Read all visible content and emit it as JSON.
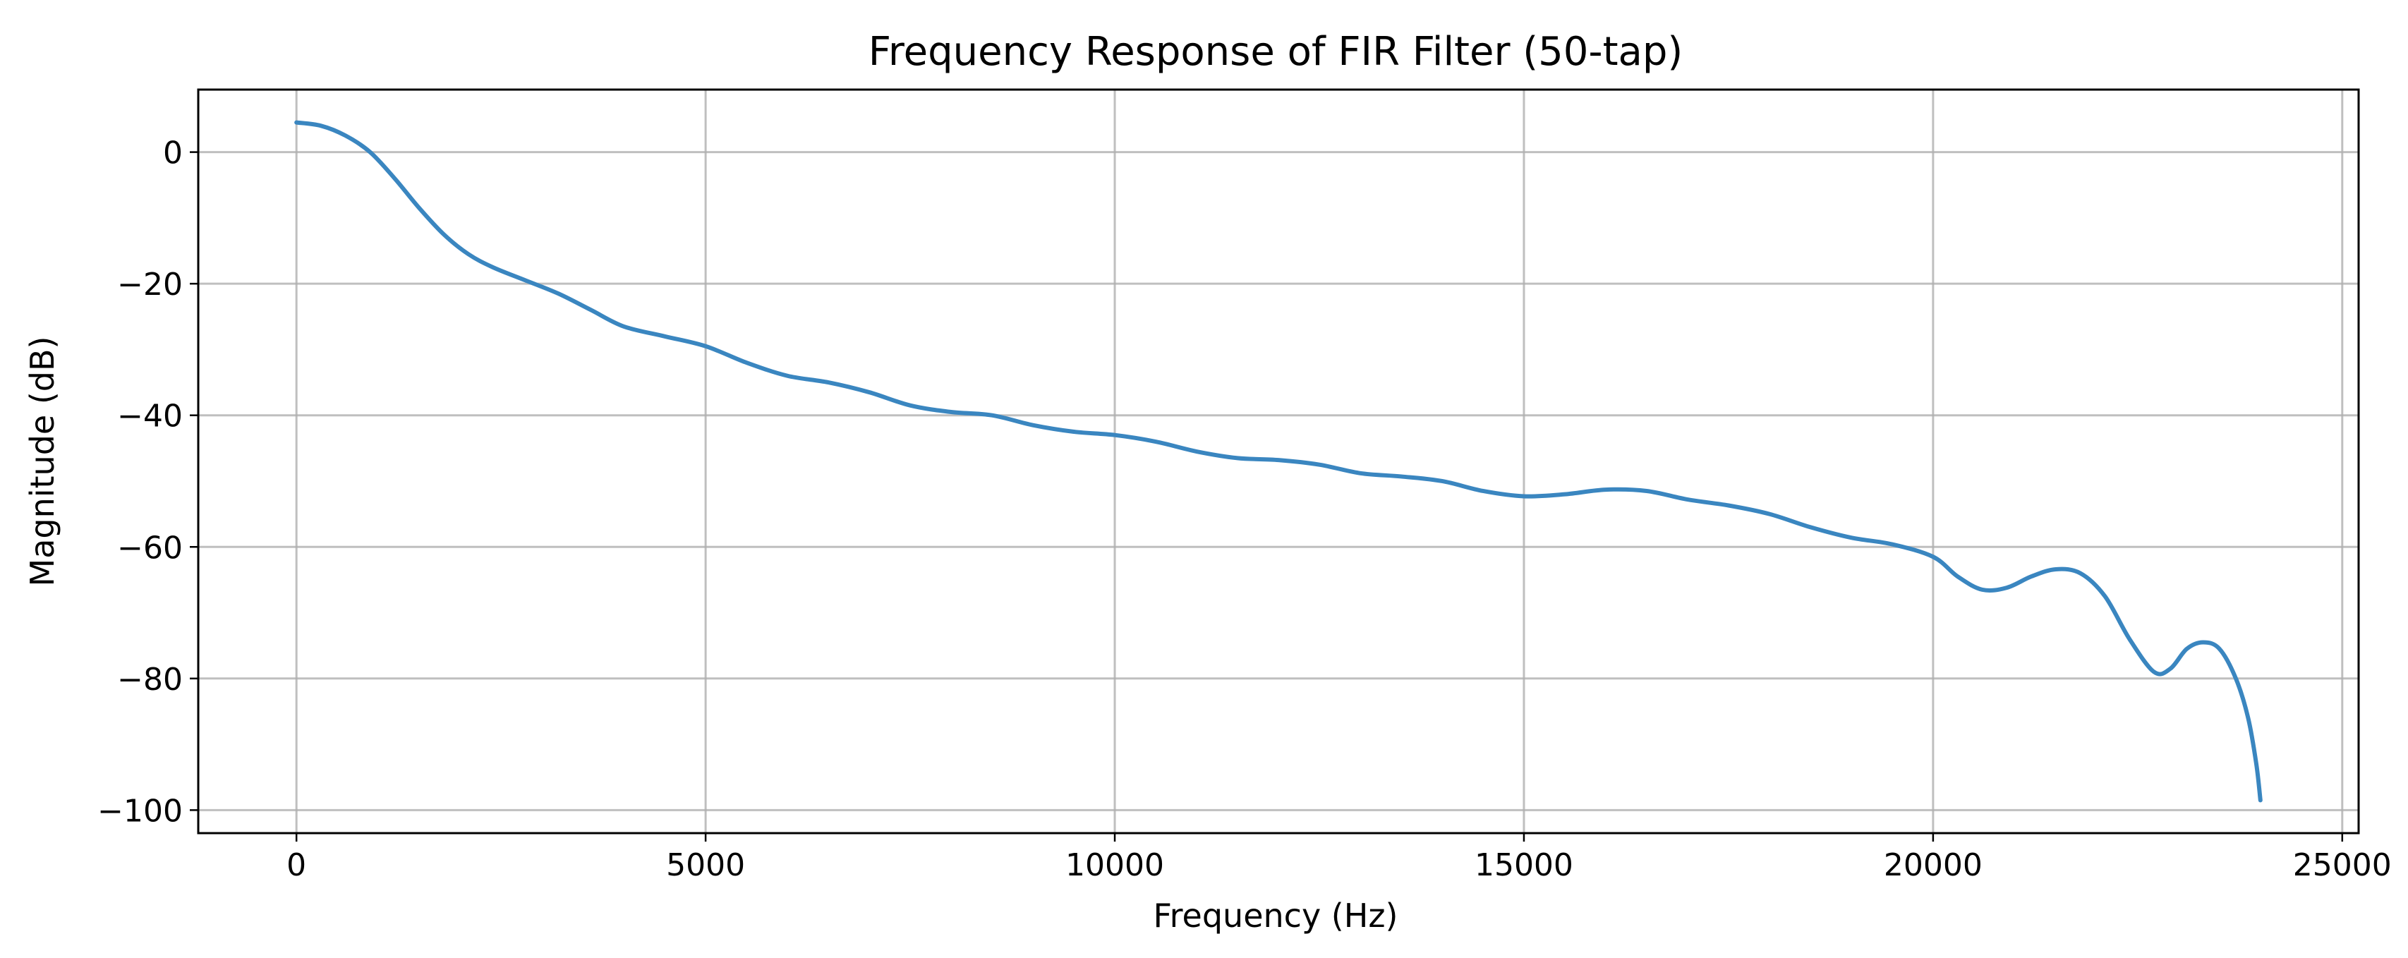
{
  "chart_data": {
    "type": "line",
    "title": "Frequency Response of FIR Filter (50-tap)",
    "xlabel": "Frequency (Hz)",
    "ylabel": "Magnitude (dB)",
    "xlim": [
      -1200,
      25200
    ],
    "ylim": [
      -103.5,
      9.5
    ],
    "grid": true,
    "x_ticks": [
      0,
      5000,
      10000,
      15000,
      20000,
      25000
    ],
    "x_tick_labels": [
      "0",
      "5000",
      "10000",
      "15000",
      "20000",
      "25000"
    ],
    "y_ticks": [
      0,
      -20,
      -40,
      -60,
      -80,
      -100
    ],
    "y_tick_labels": [
      "0",
      "−20",
      "−40",
      "−60",
      "−80",
      "−100"
    ],
    "series": [
      {
        "name": "Magnitude",
        "color": "#3a86c0",
        "x": [
          0,
          300,
          600,
          900,
          1200,
          1500,
          1800,
          2100,
          2400,
          2800,
          3200,
          3600,
          4000,
          4500,
          5000,
          5500,
          6000,
          6500,
          7000,
          7500,
          8000,
          8500,
          9000,
          9500,
          10000,
          10500,
          11000,
          11500,
          12000,
          12500,
          13000,
          13500,
          14000,
          14500,
          15000,
          15500,
          16000,
          16500,
          17000,
          17500,
          18000,
          18500,
          19000,
          19500,
          20000,
          20300,
          20600,
          20900,
          21200,
          21500,
          21800,
          22100,
          22400,
          22700,
          22900,
          23100,
          23300,
          23500,
          23700,
          23850,
          23950,
          24000
        ],
        "y": [
          4.5,
          4,
          2.5,
          0,
          -4,
          -8.5,
          -12.5,
          -15.5,
          -17.5,
          -19.5,
          -21.5,
          -24,
          -26.5,
          -28,
          -29.5,
          -32,
          -34,
          -35,
          -36.5,
          -38.5,
          -39.5,
          -40,
          -41.5,
          -42.5,
          -43,
          -44,
          -45.5,
          -46.5,
          -46.8,
          -47.5,
          -48.8,
          -49.3,
          -50,
          -51.5,
          -52.3,
          -52,
          -51.3,
          -51.5,
          -52.8,
          -53.7,
          -55,
          -57,
          -58.6,
          -59.6,
          -61.5,
          -64.5,
          -66.5,
          -66.2,
          -64.5,
          -63.4,
          -64,
          -67.5,
          -74,
          -79,
          -78.5,
          -75.5,
          -74.5,
          -75.5,
          -80,
          -86,
          -93,
          -98.5
        ]
      }
    ]
  }
}
